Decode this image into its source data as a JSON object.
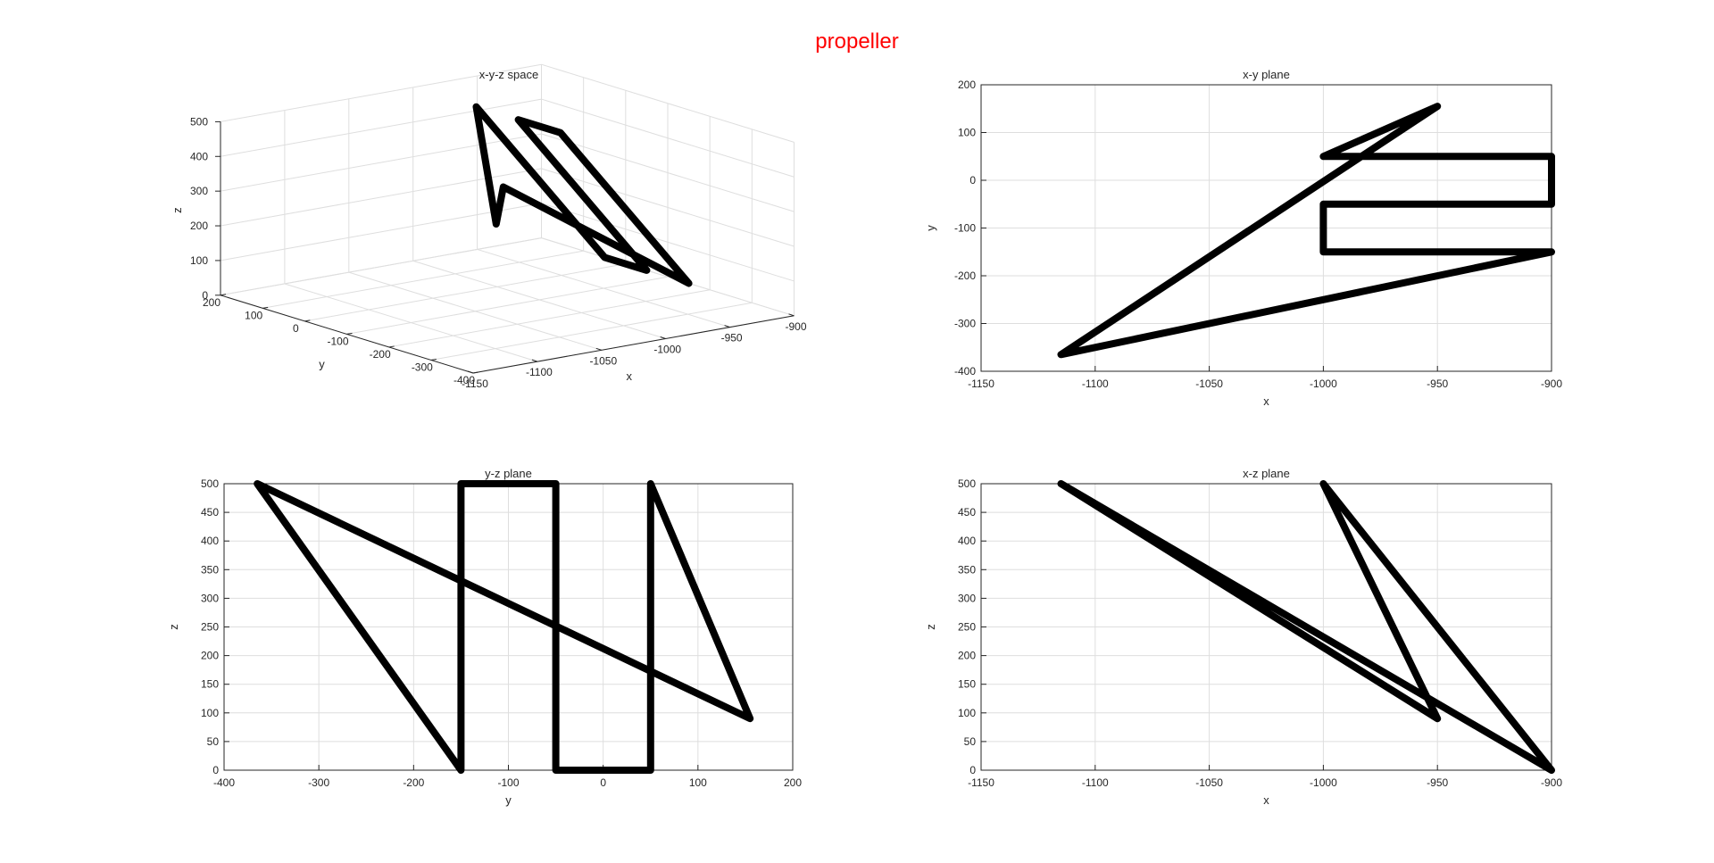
{
  "figure": {
    "supertitle": "propeller",
    "supertitle_color": "#ff0000"
  },
  "colors": {
    "line": "#000000",
    "grid": "#dedede",
    "axis": "#262626"
  },
  "path": {
    "vertices": [
      {
        "x": -1000,
        "y": 50,
        "z": 500
      },
      {
        "x": -900,
        "y": 50,
        "z": 0
      },
      {
        "x": -900,
        "y": -50,
        "z": 0
      },
      {
        "x": -1000,
        "y": -50,
        "z": 500
      },
      {
        "x": -1000,
        "y": -150,
        "z": 500
      },
      {
        "x": -900,
        "y": -150,
        "z": 0
      },
      {
        "x": -1115,
        "y": -365,
        "z": 500
      },
      {
        "x": -950,
        "y": 155,
        "z": 90
      },
      {
        "x": -1000,
        "y": 50,
        "z": 500
      }
    ]
  },
  "chart_data": [
    {
      "type": "line3d",
      "title": "x-y-z space",
      "xlabel": "x",
      "ylabel": "y",
      "zlabel": "z",
      "xlim": [
        -1150,
        -900
      ],
      "ylim": [
        -400,
        200
      ],
      "zlim": [
        0,
        500
      ],
      "xticks": [
        -1150,
        -1100,
        -1050,
        -1000,
        -950,
        -900
      ],
      "yticks": [
        -400,
        -300,
        -200,
        -100,
        0,
        100,
        200
      ],
      "zticks": [
        0,
        100,
        200,
        300,
        400,
        500
      ],
      "grid": true,
      "x": [
        -1000,
        -900,
        -900,
        -1000,
        -1000,
        -900,
        -1115,
        -950,
        -1000
      ],
      "y": [
        50,
        50,
        -50,
        -50,
        -150,
        -150,
        -365,
        155,
        50
      ],
      "z": [
        500,
        0,
        0,
        500,
        500,
        0,
        500,
        90,
        500
      ]
    },
    {
      "type": "line",
      "title": "x-y plane",
      "xlabel": "x",
      "ylabel": "y",
      "xlim": [
        -1150,
        -900
      ],
      "ylim": [
        -400,
        200
      ],
      "xticks": [
        -1150,
        -1100,
        -1050,
        -1000,
        -950,
        -900
      ],
      "yticks": [
        -400,
        -300,
        -200,
        -100,
        0,
        100,
        200
      ],
      "grid": true,
      "x": [
        -1000,
        -900,
        -900,
        -1000,
        -1000,
        -900,
        -1115,
        -950,
        -1000
      ],
      "y": [
        50,
        50,
        -50,
        -50,
        -150,
        -150,
        -365,
        155,
        50
      ]
    },
    {
      "type": "line",
      "title": "y-z plane",
      "xlabel": "y",
      "ylabel": "z",
      "xlim": [
        -400,
        200
      ],
      "ylim": [
        0,
        500
      ],
      "xticks": [
        -400,
        -300,
        -200,
        -100,
        0,
        100,
        200
      ],
      "yticks": [
        0,
        50,
        100,
        150,
        200,
        250,
        300,
        350,
        400,
        450,
        500
      ],
      "grid": true,
      "x": [
        50,
        50,
        -50,
        -50,
        -150,
        -150,
        -365,
        155,
        50
      ],
      "y": [
        500,
        0,
        0,
        500,
        500,
        0,
        500,
        90,
        500
      ]
    },
    {
      "type": "line",
      "title": "x-z plane",
      "xlabel": "x",
      "ylabel": "z",
      "xlim": [
        -1150,
        -900
      ],
      "ylim": [
        0,
        500
      ],
      "xticks": [
        -1150,
        -1100,
        -1050,
        -1000,
        -950,
        -900
      ],
      "yticks": [
        0,
        50,
        100,
        150,
        200,
        250,
        300,
        350,
        400,
        450,
        500
      ],
      "grid": true,
      "x": [
        -1000,
        -900,
        -900,
        -1000,
        -1000,
        -900,
        -1115,
        -950,
        -1000
      ],
      "y": [
        500,
        0,
        0,
        500,
        500,
        0,
        500,
        90,
        500
      ]
    }
  ]
}
